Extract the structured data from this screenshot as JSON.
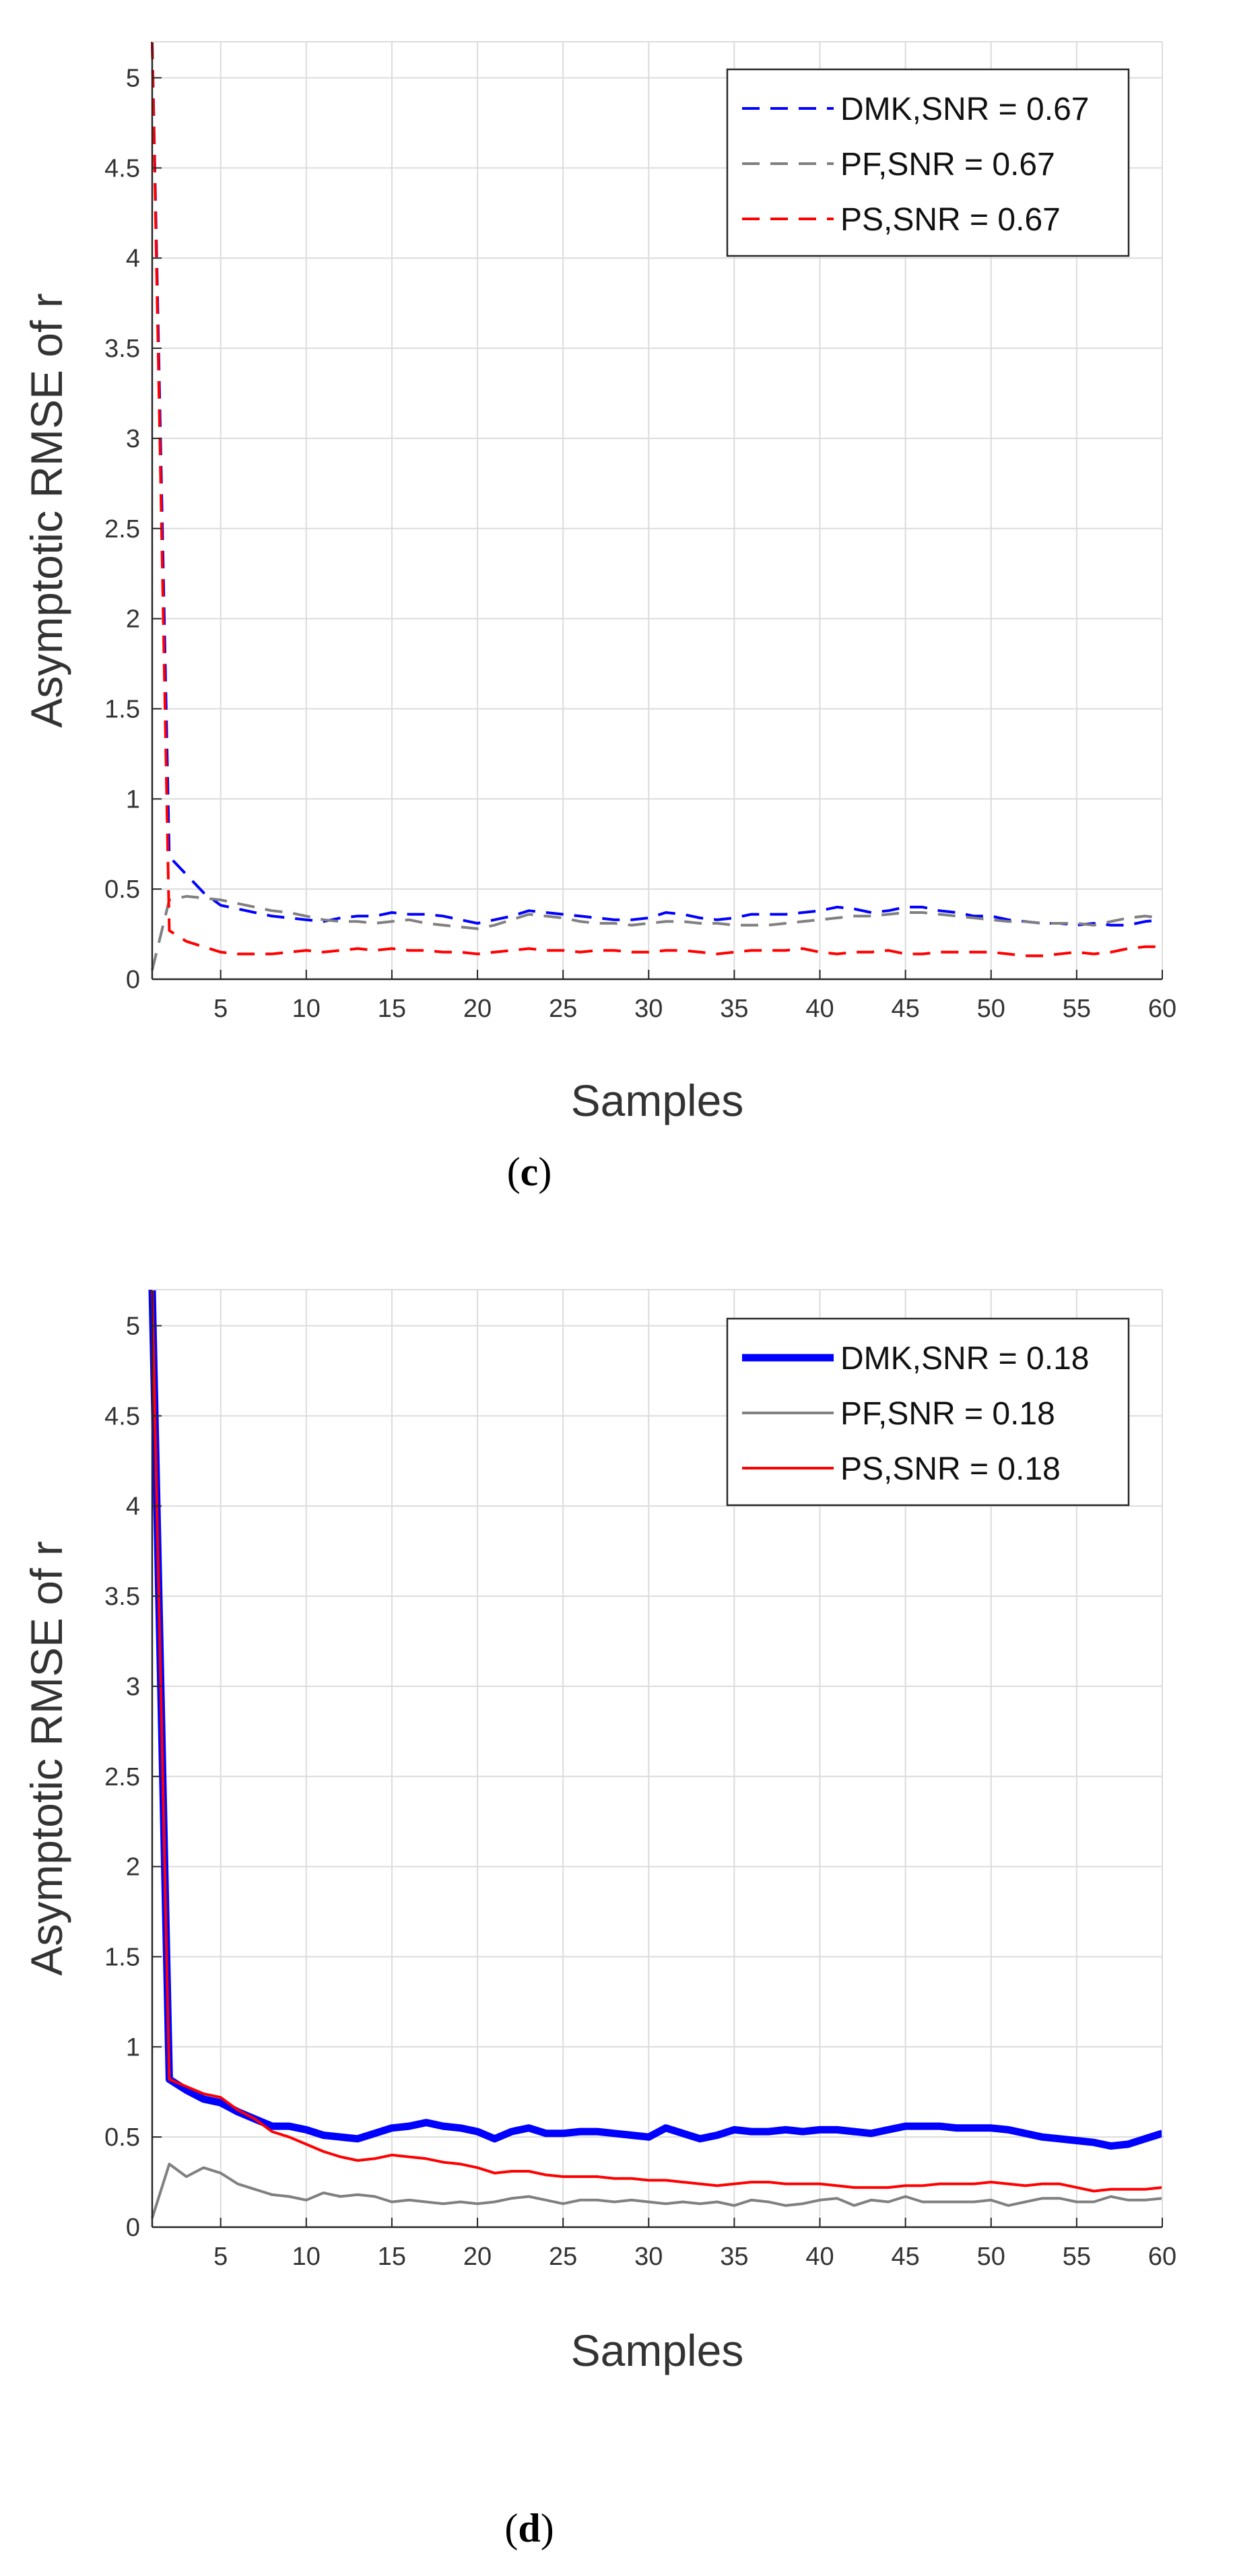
{
  "chart_data": [
    {
      "id": "c",
      "type": "line",
      "caption": {
        "open": "(",
        "letter": "c",
        "close": ")"
      },
      "title": "",
      "xlabel": "Samples",
      "ylabel": "Asymptotic RMSE of r",
      "xlim": [
        1,
        60
      ],
      "ylim": [
        0,
        5.2
      ],
      "xticks": [
        5,
        10,
        15,
        20,
        25,
        30,
        35,
        40,
        45,
        50,
        55,
        60
      ],
      "yticks": [
        0,
        0.5,
        1,
        1.5,
        2,
        2.5,
        3,
        3.5,
        4,
        4.5,
        5
      ],
      "yticklabels": [
        "0",
        "0.5",
        "1",
        "1.5",
        "2",
        "2.5",
        "3",
        "3.5",
        "4",
        "4.5",
        "5"
      ],
      "grid": true,
      "legend_position": "top-right",
      "series": [
        {
          "name": "DMK,SNR = 0.67",
          "color": "#0000ff",
          "style": "dashed",
          "weight": "thin",
          "x": [
            1,
            2,
            3,
            4,
            5,
            6,
            7,
            8,
            9,
            10,
            11,
            12,
            13,
            14,
            15,
            16,
            17,
            18,
            19,
            20,
            21,
            22,
            23,
            24,
            25,
            26,
            27,
            28,
            29,
            30,
            31,
            32,
            33,
            34,
            35,
            36,
            37,
            38,
            39,
            40,
            41,
            42,
            43,
            44,
            45,
            46,
            47,
            48,
            49,
            50,
            51,
            52,
            53,
            54,
            55,
            56,
            57,
            58,
            59,
            60
          ],
          "values": [
            5.2,
            0.68,
            0.58,
            0.48,
            0.41,
            0.39,
            0.37,
            0.35,
            0.34,
            0.33,
            0.32,
            0.34,
            0.35,
            0.35,
            0.37,
            0.36,
            0.36,
            0.35,
            0.33,
            0.31,
            0.33,
            0.35,
            0.38,
            0.37,
            0.36,
            0.35,
            0.34,
            0.33,
            0.33,
            0.34,
            0.37,
            0.36,
            0.34,
            0.33,
            0.34,
            0.36,
            0.36,
            0.36,
            0.37,
            0.38,
            0.4,
            0.39,
            0.37,
            0.38,
            0.4,
            0.4,
            0.38,
            0.37,
            0.35,
            0.35,
            0.33,
            0.32,
            0.31,
            0.31,
            0.3,
            0.31,
            0.3,
            0.3,
            0.32,
            0.33
          ]
        },
        {
          "name": "PF,SNR = 0.67",
          "color": "#808080",
          "style": "dashed",
          "weight": "thin",
          "x": [
            1,
            2,
            3,
            4,
            5,
            6,
            7,
            8,
            9,
            10,
            11,
            12,
            13,
            14,
            15,
            16,
            17,
            18,
            19,
            20,
            21,
            22,
            23,
            24,
            25,
            26,
            27,
            28,
            29,
            30,
            31,
            32,
            33,
            34,
            35,
            36,
            37,
            38,
            39,
            40,
            41,
            42,
            43,
            44,
            45,
            46,
            47,
            48,
            49,
            50,
            51,
            52,
            53,
            54,
            55,
            56,
            57,
            58,
            59,
            60
          ],
          "values": [
            0.05,
            0.44,
            0.46,
            0.45,
            0.44,
            0.42,
            0.4,
            0.38,
            0.37,
            0.35,
            0.33,
            0.32,
            0.32,
            0.31,
            0.32,
            0.33,
            0.31,
            0.3,
            0.29,
            0.28,
            0.3,
            0.33,
            0.36,
            0.35,
            0.34,
            0.32,
            0.31,
            0.31,
            0.3,
            0.31,
            0.32,
            0.32,
            0.31,
            0.31,
            0.3,
            0.3,
            0.3,
            0.31,
            0.32,
            0.33,
            0.34,
            0.35,
            0.35,
            0.36,
            0.37,
            0.37,
            0.36,
            0.35,
            0.34,
            0.33,
            0.32,
            0.32,
            0.31,
            0.31,
            0.31,
            0.3,
            0.32,
            0.34,
            0.35,
            0.34
          ]
        },
        {
          "name": "PS,SNR = 0.67",
          "color": "#ff0000",
          "style": "dashed",
          "weight": "thin",
          "x": [
            1,
            2,
            3,
            4,
            5,
            6,
            7,
            8,
            9,
            10,
            11,
            12,
            13,
            14,
            15,
            16,
            17,
            18,
            19,
            20,
            21,
            22,
            23,
            24,
            25,
            26,
            27,
            28,
            29,
            30,
            31,
            32,
            33,
            34,
            35,
            36,
            37,
            38,
            39,
            40,
            41,
            42,
            43,
            44,
            45,
            46,
            47,
            48,
            49,
            50,
            51,
            52,
            53,
            54,
            55,
            56,
            57,
            58,
            59,
            60
          ],
          "values": [
            5.2,
            0.27,
            0.21,
            0.18,
            0.15,
            0.14,
            0.14,
            0.14,
            0.15,
            0.16,
            0.15,
            0.16,
            0.17,
            0.16,
            0.17,
            0.16,
            0.16,
            0.15,
            0.15,
            0.14,
            0.15,
            0.16,
            0.17,
            0.16,
            0.16,
            0.15,
            0.16,
            0.16,
            0.15,
            0.15,
            0.16,
            0.16,
            0.15,
            0.14,
            0.15,
            0.16,
            0.16,
            0.16,
            0.17,
            0.15,
            0.14,
            0.15,
            0.15,
            0.16,
            0.14,
            0.14,
            0.15,
            0.15,
            0.15,
            0.15,
            0.14,
            0.13,
            0.13,
            0.14,
            0.15,
            0.14,
            0.15,
            0.17,
            0.18,
            0.18
          ]
        }
      ]
    },
    {
      "id": "d",
      "type": "line",
      "caption": {
        "open": "(",
        "letter": "d",
        "close": ")"
      },
      "title": "",
      "xlabel": "Samples",
      "ylabel": "Asymptotic RMSE of r",
      "xlim": [
        1,
        60
      ],
      "ylim": [
        0,
        5.2
      ],
      "xticks": [
        5,
        10,
        15,
        20,
        25,
        30,
        35,
        40,
        45,
        50,
        55,
        60
      ],
      "yticks": [
        0,
        0.5,
        1,
        1.5,
        2,
        2.5,
        3,
        3.5,
        4,
        4.5,
        5
      ],
      "yticklabels": [
        "0",
        "0.5",
        "1",
        "1.5",
        "2",
        "2.5",
        "3",
        "3.5",
        "4",
        "4.5",
        "5"
      ],
      "grid": true,
      "legend_position": "top-right",
      "series": [
        {
          "name": "DMK,SNR = 0.18",
          "color": "#0000ff",
          "style": "solid",
          "weight": "thick",
          "x": [
            1,
            2,
            3,
            4,
            5,
            6,
            7,
            8,
            9,
            10,
            11,
            12,
            13,
            14,
            15,
            16,
            17,
            18,
            19,
            20,
            21,
            22,
            23,
            24,
            25,
            26,
            27,
            28,
            29,
            30,
            31,
            32,
            33,
            34,
            35,
            36,
            37,
            38,
            39,
            40,
            41,
            42,
            43,
            44,
            45,
            46,
            47,
            48,
            49,
            50,
            51,
            52,
            53,
            54,
            55,
            56,
            57,
            58,
            59,
            60
          ],
          "values": [
            5.2,
            0.82,
            0.76,
            0.71,
            0.69,
            0.64,
            0.6,
            0.56,
            0.56,
            0.54,
            0.51,
            0.5,
            0.49,
            0.52,
            0.55,
            0.56,
            0.58,
            0.56,
            0.55,
            0.53,
            0.49,
            0.53,
            0.55,
            0.52,
            0.52,
            0.53,
            0.53,
            0.52,
            0.51,
            0.5,
            0.55,
            0.52,
            0.49,
            0.51,
            0.54,
            0.53,
            0.53,
            0.54,
            0.53,
            0.54,
            0.54,
            0.53,
            0.52,
            0.54,
            0.56,
            0.56,
            0.56,
            0.55,
            0.55,
            0.55,
            0.54,
            0.52,
            0.5,
            0.49,
            0.48,
            0.47,
            0.45,
            0.46,
            0.49,
            0.52
          ]
        },
        {
          "name": "PF,SNR = 0.18",
          "color": "#808080",
          "style": "solid",
          "weight": "thin",
          "x": [
            1,
            2,
            3,
            4,
            5,
            6,
            7,
            8,
            9,
            10,
            11,
            12,
            13,
            14,
            15,
            16,
            17,
            18,
            19,
            20,
            21,
            22,
            23,
            24,
            25,
            26,
            27,
            28,
            29,
            30,
            31,
            32,
            33,
            34,
            35,
            36,
            37,
            38,
            39,
            40,
            41,
            42,
            43,
            44,
            45,
            46,
            47,
            48,
            49,
            50,
            51,
            52,
            53,
            54,
            55,
            56,
            57,
            58,
            59,
            60
          ],
          "values": [
            0.05,
            0.35,
            0.28,
            0.33,
            0.3,
            0.24,
            0.21,
            0.18,
            0.17,
            0.15,
            0.19,
            0.17,
            0.18,
            0.17,
            0.14,
            0.15,
            0.14,
            0.13,
            0.14,
            0.13,
            0.14,
            0.16,
            0.17,
            0.15,
            0.13,
            0.15,
            0.15,
            0.14,
            0.15,
            0.14,
            0.13,
            0.14,
            0.13,
            0.14,
            0.12,
            0.15,
            0.14,
            0.12,
            0.13,
            0.15,
            0.16,
            0.12,
            0.15,
            0.14,
            0.17,
            0.14,
            0.14,
            0.14,
            0.14,
            0.15,
            0.12,
            0.14,
            0.16,
            0.16,
            0.14,
            0.14,
            0.17,
            0.15,
            0.15,
            0.16
          ]
        },
        {
          "name": "PS,SNR = 0.18",
          "color": "#ff0000",
          "style": "solid",
          "weight": "thin",
          "x": [
            1,
            2,
            3,
            4,
            5,
            6,
            7,
            8,
            9,
            10,
            11,
            12,
            13,
            14,
            15,
            16,
            17,
            18,
            19,
            20,
            21,
            22,
            23,
            24,
            25,
            26,
            27,
            28,
            29,
            30,
            31,
            32,
            33,
            34,
            35,
            36,
            37,
            38,
            39,
            40,
            41,
            42,
            43,
            44,
            45,
            46,
            47,
            48,
            49,
            50,
            51,
            52,
            53,
            54,
            55,
            56,
            57,
            58,
            59,
            60
          ],
          "values": [
            5.2,
            0.82,
            0.78,
            0.74,
            0.72,
            0.65,
            0.6,
            0.53,
            0.5,
            0.46,
            0.42,
            0.39,
            0.37,
            0.38,
            0.4,
            0.39,
            0.38,
            0.36,
            0.35,
            0.33,
            0.3,
            0.31,
            0.31,
            0.29,
            0.28,
            0.28,
            0.28,
            0.27,
            0.27,
            0.26,
            0.26,
            0.25,
            0.24,
            0.23,
            0.24,
            0.25,
            0.25,
            0.24,
            0.24,
            0.24,
            0.23,
            0.22,
            0.22,
            0.22,
            0.23,
            0.23,
            0.24,
            0.24,
            0.24,
            0.25,
            0.24,
            0.23,
            0.24,
            0.24,
            0.22,
            0.2,
            0.21,
            0.21,
            0.21,
            0.22
          ]
        }
      ]
    }
  ]
}
